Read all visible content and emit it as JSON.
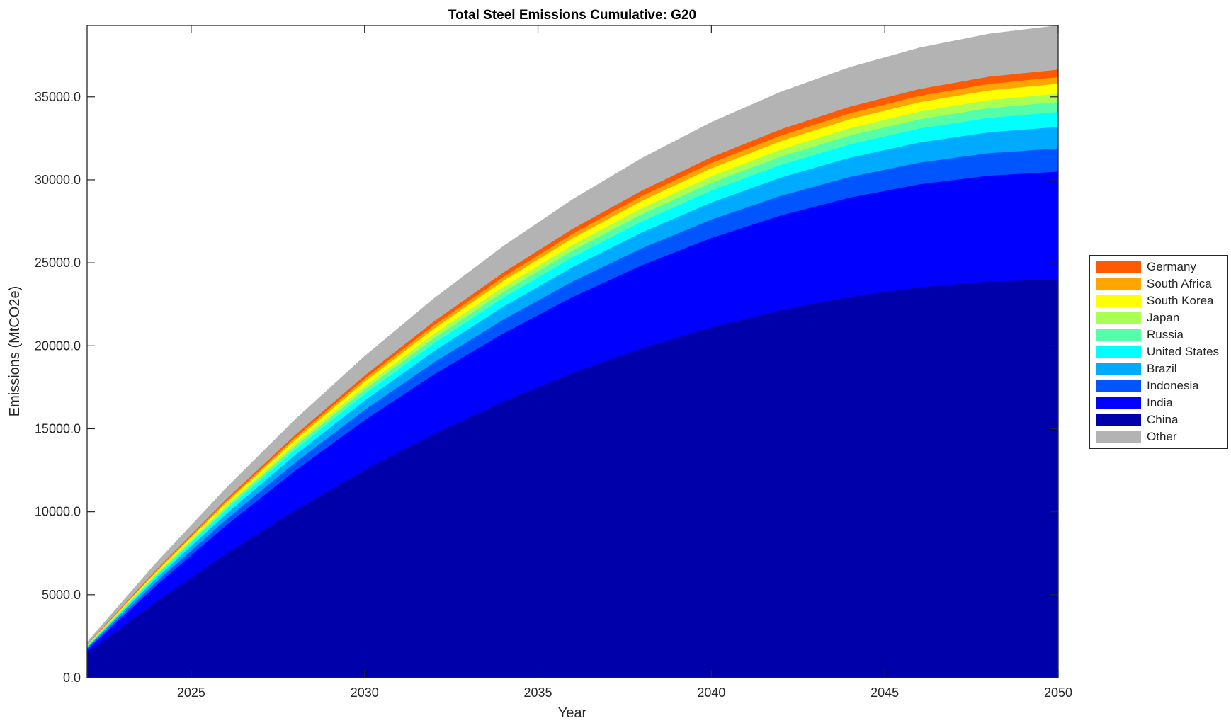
{
  "chart_data": {
    "type": "area",
    "stacked": true,
    "title": "Total Steel Emissions Cumulative: G20",
    "xlabel": "Year",
    "ylabel": "Emissions (MtCO2e)",
    "xlim": [
      2022,
      2050
    ],
    "ylim": [
      0,
      39300
    ],
    "xticks": [
      2025,
      2030,
      2035,
      2040,
      2045,
      2050
    ],
    "yticks": [
      0,
      5000,
      10000,
      15000,
      20000,
      25000,
      30000,
      35000
    ],
    "ytick_labels": [
      "0.0",
      "5000.0",
      "10000.0",
      "15000.0",
      "20000.0",
      "25000.0",
      "30000.0",
      "35000.0"
    ],
    "grid": false,
    "legend_placement": "right-outside",
    "x": [
      2022,
      2024,
      2026,
      2028,
      2030,
      2032,
      2034,
      2036,
      2038,
      2040,
      2042,
      2044,
      2046,
      2048,
      2050
    ],
    "series": [
      {
        "name": "China",
        "color": "#0000aa",
        "values": [
          1500,
          4599,
          7469,
          10109,
          12519,
          14700,
          16651,
          18373,
          19865,
          21127,
          22160,
          22963,
          23537,
          23881,
          24000
        ]
      },
      {
        "name": "India",
        "color": "#0000ff",
        "values": [
          200,
          975,
          1700,
          2375,
          3000,
          3575,
          4100,
          4575,
          5000,
          5375,
          5700,
          5975,
          6200,
          6375,
          6500
        ]
      },
      {
        "name": "Indonesia",
        "color": "#0055ff",
        "values": [
          70,
          218,
          357,
          490,
          613,
          728,
          836,
          935,
          1025,
          1109,
          1183,
          1249,
          1308,
          1358,
          1400
        ]
      },
      {
        "name": "Brazil",
        "color": "#00aaff",
        "values": [
          65,
          203,
          332,
          455,
          569,
          676,
          776,
          868,
          952,
          1030,
          1099,
          1160,
          1214,
          1261,
          1300
        ]
      },
      {
        "name": "United States",
        "color": "#00ffff",
        "values": [
          45,
          140,
          230,
          315,
          394,
          468,
          537,
          601,
          659,
          713,
          761,
          803,
          841,
          873,
          900
        ]
      },
      {
        "name": "Russia",
        "color": "#55ffaa",
        "values": [
          30,
          94,
          153,
          210,
          263,
          312,
          358,
          401,
          439,
          475,
          507,
          535,
          560,
          582,
          600
        ]
      },
      {
        "name": "Japan",
        "color": "#aaff55",
        "values": [
          25,
          78,
          128,
          175,
          219,
          260,
          299,
          334,
          366,
          396,
          423,
          446,
          467,
          485,
          500
        ]
      },
      {
        "name": "South Korea",
        "color": "#ffff00",
        "values": [
          30,
          94,
          153,
          210,
          263,
          312,
          358,
          401,
          439,
          475,
          507,
          535,
          560,
          582,
          600
        ]
      },
      {
        "name": "South Africa",
        "color": "#ffa500",
        "values": [
          20,
          62,
          102,
          140,
          175,
          208,
          239,
          267,
          293,
          317,
          338,
          357,
          374,
          388,
          400
        ]
      },
      {
        "name": "Germany",
        "color": "#ff5a00",
        "values": [
          23,
          70,
          115,
          158,
          197,
          234,
          269,
          301,
          329,
          356,
          380,
          401,
          420,
          437,
          450
        ]
      },
      {
        "name": "Other",
        "color": "#b3b3b3",
        "values": [
          133,
          413,
          676,
          928,
          1161,
          1378,
          1582,
          1770,
          1940,
          2099,
          2239,
          2364,
          2475,
          2571,
          2650
        ]
      }
    ],
    "legend_order": [
      "Germany",
      "South Africa",
      "South Korea",
      "Japan",
      "Russia",
      "United States",
      "Brazil",
      "Indonesia",
      "India",
      "China",
      "Other"
    ]
  }
}
